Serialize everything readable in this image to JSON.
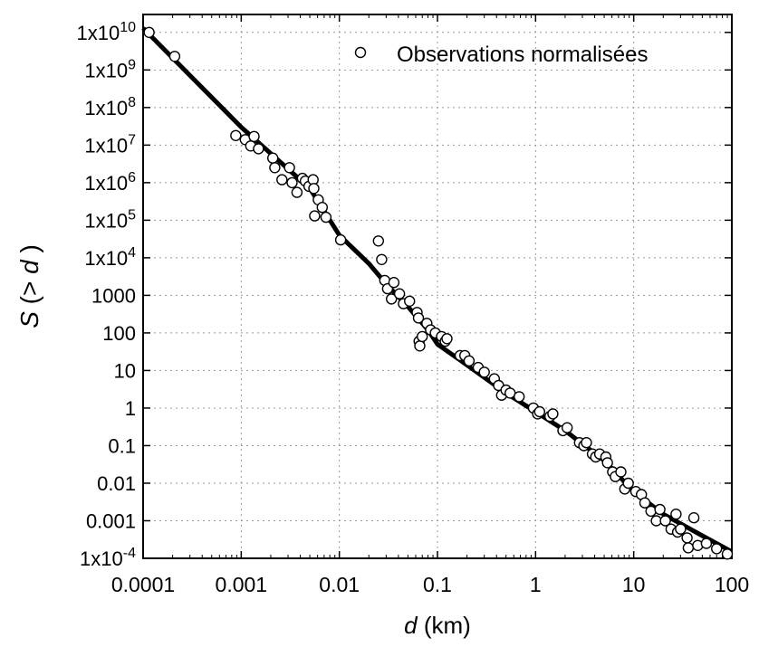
{
  "chart_data": {
    "type": "scatter",
    "title": "",
    "xlabel_italic": "d",
    "xlabel_rest": " (km)",
    "ylabel_italic1": "S",
    "ylabel_mid": " (> ",
    "ylabel_italic2": "d",
    "ylabel_end": " )",
    "x_scale": "log",
    "y_scale": "log",
    "xlim": [
      0.0001,
      100
    ],
    "ylim": [
      0.0001,
      30000000000
    ],
    "grid": true,
    "legend_position": "top-right",
    "x_tick_labels": [
      {
        "value": 0.0001,
        "label": "0.0001"
      },
      {
        "value": 0.001,
        "label": "0.001"
      },
      {
        "value": 0.01,
        "label": "0.01"
      },
      {
        "value": 0.1,
        "label": "0.1"
      },
      {
        "value": 1,
        "label": "1"
      },
      {
        "value": 10,
        "label": "10"
      },
      {
        "value": 100,
        "label": "100"
      }
    ],
    "y_tick_labels": [
      {
        "value": 0.0001,
        "base": "1x10",
        "sup": "-4"
      },
      {
        "value": 0.001,
        "base": "0.001",
        "sup": ""
      },
      {
        "value": 0.01,
        "base": "0.01",
        "sup": ""
      },
      {
        "value": 0.1,
        "base": "0.1",
        "sup": ""
      },
      {
        "value": 1,
        "base": "1",
        "sup": ""
      },
      {
        "value": 10,
        "base": "10",
        "sup": ""
      },
      {
        "value": 100,
        "base": "100",
        "sup": ""
      },
      {
        "value": 1000,
        "base": "1000",
        "sup": ""
      },
      {
        "value": 10000,
        "base": "1x10",
        "sup": "4"
      },
      {
        "value": 100000,
        "base": "1x10",
        "sup": "5"
      },
      {
        "value": 1000000,
        "base": "1x10",
        "sup": "6"
      },
      {
        "value": 10000000,
        "base": "1x10",
        "sup": "7"
      },
      {
        "value": 100000000,
        "base": "1x10",
        "sup": "8"
      },
      {
        "value": 1000000000,
        "base": "1x10",
        "sup": "9"
      },
      {
        "value": 10000000000,
        "base": "1x10",
        "sup": "10"
      }
    ],
    "series": [
      {
        "name": "Observations normalisées",
        "kind": "scatter",
        "marker": "open-circle",
        "points": [
          [
            0.000115,
            10000000000
          ],
          [
            0.00021,
            2300000000
          ],
          [
            0.00088,
            18000000
          ],
          [
            0.0011,
            14000000
          ],
          [
            0.00125,
            9500000
          ],
          [
            0.00135,
            17000000
          ],
          [
            0.0015,
            8000000
          ],
          [
            0.0021,
            4500000
          ],
          [
            0.0022,
            2500000
          ],
          [
            0.0026,
            1200000
          ],
          [
            0.0031,
            2500000
          ],
          [
            0.0033,
            1000000
          ],
          [
            0.0037,
            550000
          ],
          [
            0.0042,
            1300000
          ],
          [
            0.0045,
            1100000
          ],
          [
            0.0049,
            800000
          ],
          [
            0.0054,
            1200000
          ],
          [
            0.0055,
            700000
          ],
          [
            0.0056,
            130000
          ],
          [
            0.0061,
            350000
          ],
          [
            0.0067,
            220000
          ],
          [
            0.0073,
            120000
          ],
          [
            0.0103,
            30000
          ],
          [
            0.025,
            28000
          ],
          [
            0.027,
            9000
          ],
          [
            0.029,
            2500
          ],
          [
            0.031,
            1500
          ],
          [
            0.034,
            800
          ],
          [
            0.036,
            2200
          ],
          [
            0.041,
            1100
          ],
          [
            0.045,
            600
          ],
          [
            0.052,
            700
          ],
          [
            0.062,
            350
          ],
          [
            0.064,
            250
          ],
          [
            0.065,
            60
          ],
          [
            0.066,
            45
          ],
          [
            0.07,
            80
          ],
          [
            0.078,
            180
          ],
          [
            0.085,
            120
          ],
          [
            0.095,
            100
          ],
          [
            0.11,
            80
          ],
          [
            0.12,
            60
          ],
          [
            0.125,
            70
          ],
          [
            0.17,
            25
          ],
          [
            0.19,
            25
          ],
          [
            0.21,
            18
          ],
          [
            0.26,
            12
          ],
          [
            0.3,
            9
          ],
          [
            0.38,
            6
          ],
          [
            0.42,
            4
          ],
          [
            0.45,
            2.2
          ],
          [
            0.5,
            3
          ],
          [
            0.55,
            2.5
          ],
          [
            0.68,
            2
          ],
          [
            0.95,
            1
          ],
          [
            1.05,
            0.7
          ],
          [
            1.1,
            0.8
          ],
          [
            1.4,
            0.6
          ],
          [
            1.5,
            0.7
          ],
          [
            1.9,
            0.25
          ],
          [
            2.1,
            0.3
          ],
          [
            2.8,
            0.12
          ],
          [
            3.1,
            0.1
          ],
          [
            3.3,
            0.12
          ],
          [
            3.8,
            0.06
          ],
          [
            4.1,
            0.05
          ],
          [
            4.5,
            0.06
          ],
          [
            5.2,
            0.05
          ],
          [
            5.4,
            0.035
          ],
          [
            6.1,
            0.02
          ],
          [
            6.5,
            0.015
          ],
          [
            7.4,
            0.02
          ],
          [
            8.1,
            0.007
          ],
          [
            8.8,
            0.01
          ],
          [
            10.5,
            0.006
          ],
          [
            12,
            0.005
          ],
          [
            13,
            0.003
          ],
          [
            15,
            0.0018
          ],
          [
            17,
            0.001
          ],
          [
            18.5,
            0.002
          ],
          [
            21,
            0.001
          ],
          [
            24,
            0.0006
          ],
          [
            27,
            0.0015
          ],
          [
            28,
            0.0005
          ],
          [
            30,
            0.0006
          ],
          [
            35,
            0.00035
          ],
          [
            36,
            0.00019
          ],
          [
            41,
            0.0012
          ],
          [
            45,
            0.00022
          ],
          [
            55,
            0.00025
          ],
          [
            70,
            0.00018
          ],
          [
            90,
            0.00013
          ]
        ]
      },
      {
        "kind": "line",
        "points": [
          [
            0.0001,
            13000000000
          ],
          [
            0.001,
            30000000
          ],
          [
            0.005,
            700000
          ],
          [
            0.01,
            40000
          ],
          [
            0.02,
            7000
          ],
          [
            0.03,
            2000
          ],
          [
            0.05,
            500
          ],
          [
            0.08,
            120
          ],
          [
            0.1,
            50
          ],
          [
            0.2,
            14
          ],
          [
            0.5,
            2.5
          ],
          [
            1,
            0.8
          ],
          [
            2,
            0.25
          ],
          [
            5,
            0.04
          ],
          [
            10,
            0.006
          ],
          [
            20,
            0.0015
          ],
          [
            50,
            0.0004
          ],
          [
            100,
            0.00015
          ]
        ]
      }
    ]
  }
}
